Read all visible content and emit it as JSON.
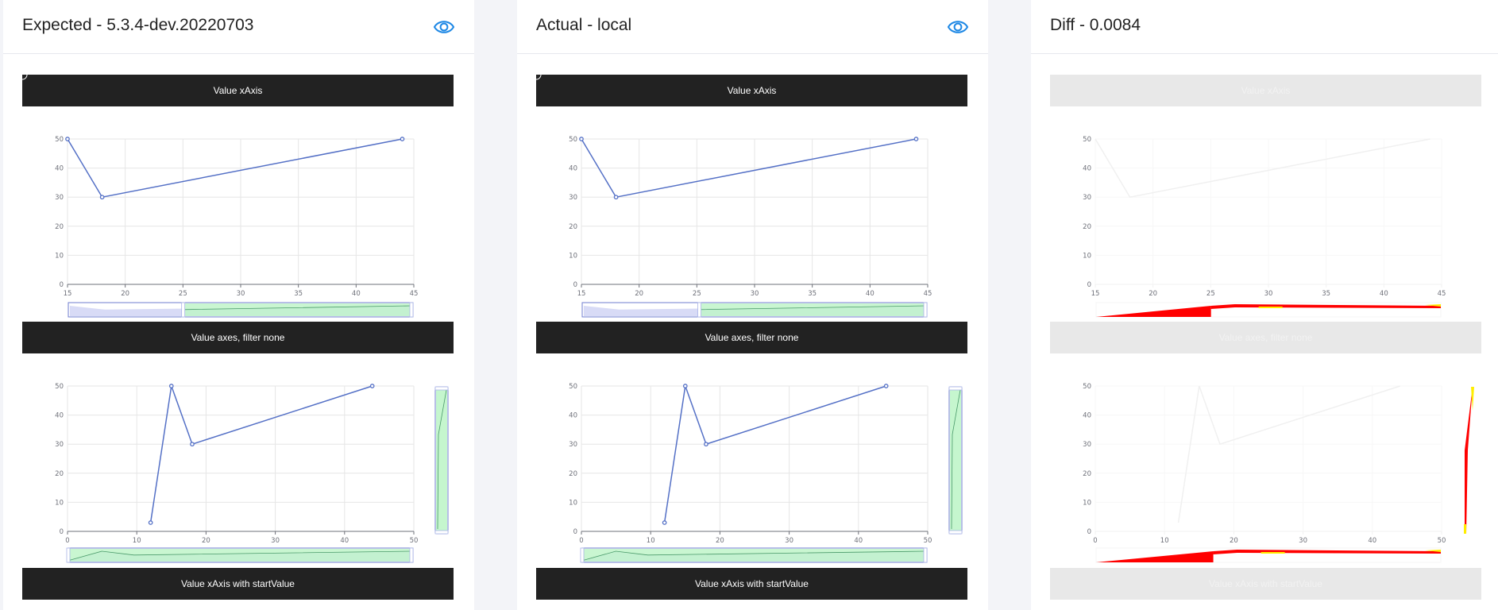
{
  "panels": [
    {
      "id": "expected",
      "title": "Expected - 5.3.4-dev.20220703",
      "show_eye": true,
      "mode": "normal"
    },
    {
      "id": "actual",
      "title": "Actual - local",
      "show_eye": true,
      "mode": "normal"
    },
    {
      "id": "diff",
      "title": "Diff - 0.0084",
      "show_eye": false,
      "mode": "diff"
    }
  ],
  "sections": [
    "Value xAxis",
    "Value axes, filter none",
    "Value xAxis with startValue"
  ],
  "icons": {
    "visibility": "eye-icon"
  },
  "colors": {
    "accent": "#1e88e5",
    "series": "#5470c6",
    "bar_dark": "#222222",
    "bar_diff": "#e8e8e8",
    "zoom_fill": "#bff5c9",
    "zoom_shadow": "#d8dbf6",
    "diff_red": "#ff0000",
    "diff_yellow": "#ffee00"
  },
  "chart_data": [
    {
      "type": "line",
      "title": "Value xAxis",
      "x": [
        15,
        18,
        44
      ],
      "y": [
        50,
        30,
        50
      ],
      "xlim": [
        15,
        45
      ],
      "ylim": [
        0,
        50
      ],
      "xticks": [
        15,
        20,
        25,
        30,
        35,
        40,
        45
      ],
      "yticks": [
        0,
        10,
        20,
        30,
        40,
        50
      ],
      "datazoom": {
        "orient": "horizontal",
        "start_value": 25
      }
    },
    {
      "type": "line",
      "title": "Value axes, filter none",
      "x": [
        12,
        15,
        18,
        44
      ],
      "y": [
        3,
        50,
        30,
        50
      ],
      "xlim": [
        0,
        50
      ],
      "ylim": [
        0,
        50
      ],
      "xticks": [
        0,
        10,
        20,
        30,
        40,
        50
      ],
      "yticks": [
        0,
        10,
        20,
        30,
        40,
        50
      ],
      "datazoom": {
        "orient": "both"
      }
    }
  ]
}
